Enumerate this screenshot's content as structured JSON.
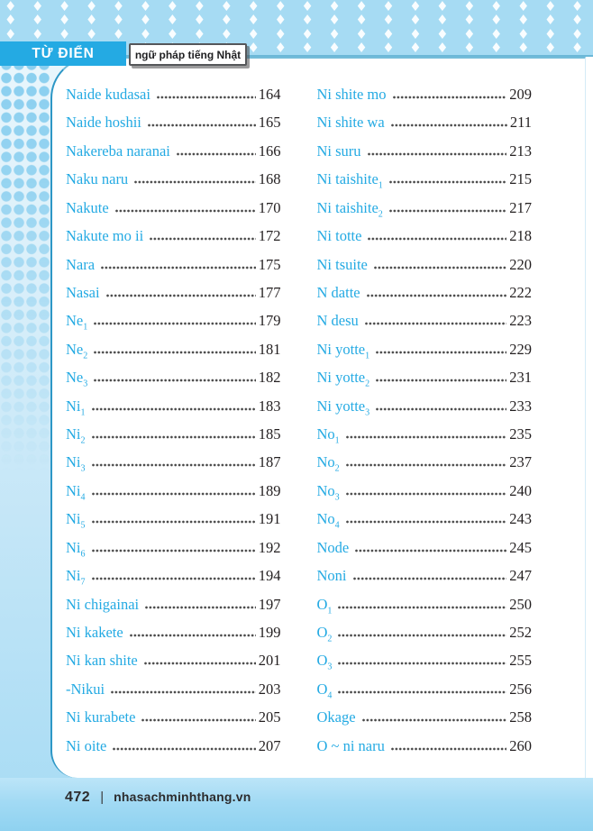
{
  "header": {
    "badge": "TỪ ĐIỂN",
    "subtitle": "ngữ pháp tiếng Nhật"
  },
  "footer": {
    "page_number": "472",
    "separator": "|",
    "website": "nhasachminhthang.vn"
  },
  "colors": {
    "accent_blue": "#24aae3",
    "band_blue": "#a6dbf3",
    "ink": "#231f20",
    "footer_band": "#a2daf4"
  },
  "decor": {
    "diamond_glyph": "♦",
    "diamond_rows": 4
  },
  "toc": {
    "columns": [
      {
        "id": "left",
        "entries": [
          {
            "label": "Naide kudasai",
            "page": "164"
          },
          {
            "label": "Naide hoshii",
            "page": "165"
          },
          {
            "label": "Nakereba naranai",
            "page": "166"
          },
          {
            "label": "Naku naru",
            "page": "168"
          },
          {
            "label": "Nakute",
            "page": "170"
          },
          {
            "label": "Nakute mo ii",
            "page": "172"
          },
          {
            "label": "Nara",
            "page": "175"
          },
          {
            "label": "Nasai",
            "page": "177"
          },
          {
            "label": "Ne",
            "sub": "1",
            "page": "179"
          },
          {
            "label": "Ne",
            "sub": "2",
            "page": "181"
          },
          {
            "label": "Ne",
            "sub": "3",
            "page": "182"
          },
          {
            "label": "Ni",
            "sub": "1",
            "page": "183"
          },
          {
            "label": "Ni",
            "sub": "2",
            "page": "185"
          },
          {
            "label": "Ni",
            "sub": "3",
            "page": "187"
          },
          {
            "label": "Ni",
            "sub": "4",
            "page": "189"
          },
          {
            "label": "Ni",
            "sub": "5",
            "page": "191"
          },
          {
            "label": "Ni",
            "sub": "6",
            "page": "192"
          },
          {
            "label": "Ni",
            "sub": "7",
            "page": "194"
          },
          {
            "label": "Ni chigainai",
            "page": "197"
          },
          {
            "label": "Ni kakete",
            "page": "199"
          },
          {
            "label": "Ni kan shite",
            "page": "201"
          },
          {
            "label": "-Nikui",
            "page": "203"
          },
          {
            "label": "Ni kurabete",
            "page": "205"
          },
          {
            "label": "Ni oite",
            "page": "207"
          }
        ]
      },
      {
        "id": "right",
        "entries": [
          {
            "label": "Ni shite mo",
            "page": "209"
          },
          {
            "label": "Ni shite wa",
            "page": "211"
          },
          {
            "label": "Ni suru",
            "page": "213"
          },
          {
            "label": "Ni taishite",
            "sub": "1",
            "page": "215"
          },
          {
            "label": "Ni taishite",
            "sub": "2",
            "page": "217"
          },
          {
            "label": "Ni totte",
            "page": "218"
          },
          {
            "label": "Ni tsuite",
            "page": "220"
          },
          {
            "label": "N datte",
            "page": "222"
          },
          {
            "label": "N desu",
            "page": "223"
          },
          {
            "label": "Ni yotte",
            "sub": "1",
            "page": "229"
          },
          {
            "label": "Ni yotte",
            "sub": "2",
            "page": "231"
          },
          {
            "label": "Ni yotte",
            "sub": "3",
            "page": "233"
          },
          {
            "label": "No",
            "sub": "1",
            "page": "235"
          },
          {
            "label": "No",
            "sub": "2",
            "page": "237"
          },
          {
            "label": "No",
            "sub": "3",
            "page": "240"
          },
          {
            "label": "No",
            "sub": "4",
            "page": "243"
          },
          {
            "label": "Node",
            "page": "245"
          },
          {
            "label": "Noni",
            "page": "247"
          },
          {
            "label": "O",
            "sub": "1",
            "page": "250"
          },
          {
            "label": "O",
            "sub": "2",
            "page": "252"
          },
          {
            "label": "O",
            "sub": "3",
            "page": "255"
          },
          {
            "label": "O",
            "sub": "4",
            "page": "256"
          },
          {
            "label": "Okage",
            "page": "258"
          },
          {
            "label": "O ~ ni naru",
            "page": "260"
          }
        ]
      }
    ]
  }
}
